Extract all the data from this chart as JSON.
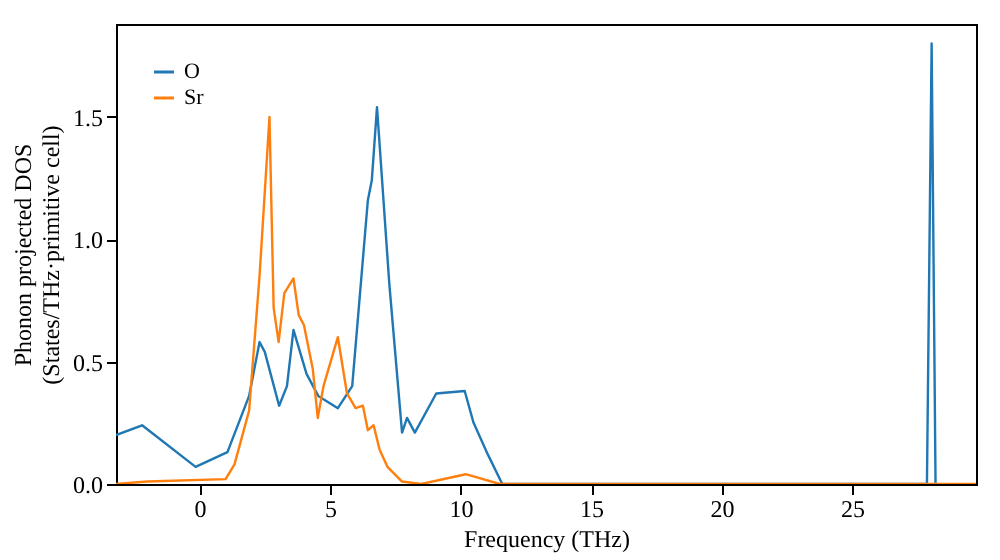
{
  "chart_data": {
    "type": "line",
    "xlabel": "Frequency (THz)",
    "ylabel": "Phonon projected DOS\n(States/THz·primitive cell)",
    "xlim": [
      -3.2,
      29.75
    ],
    "ylim": [
      0,
      1.88
    ],
    "xticks": [
      0,
      5,
      10,
      15,
      20,
      25
    ],
    "yticks": [
      {
        "value": 0,
        "label": "0.0"
      },
      {
        "value": 0.5,
        "label": "0.5"
      },
      {
        "value": 1.0,
        "label": "1.0"
      },
      {
        "value": 1.5,
        "label": "1.5"
      }
    ],
    "grid": false,
    "legend": "top left",
    "line_style": "solid",
    "marker": "none",
    "series": [
      {
        "name": "O",
        "color": "#1f77b4",
        "x": [
          -3.2,
          -2.2,
          -0.15,
          1.07,
          1.9,
          2.3,
          2.5,
          3.05,
          3.35,
          3.6,
          4.1,
          4.55,
          5.3,
          5.85,
          6.45,
          6.6,
          6.8,
          7.27,
          7.76,
          7.95,
          8.25,
          9.07,
          10.16,
          10.5,
          11.05,
          11.6,
          27.87,
          28.05,
          28.2
        ],
        "values": [
          0.2,
          0.24,
          0.07,
          0.13,
          0.36,
          0.58,
          0.54,
          0.32,
          0.4,
          0.63,
          0.45,
          0.36,
          0.31,
          0.4,
          1.16,
          1.24,
          1.54,
          0.82,
          0.21,
          0.27,
          0.21,
          0.37,
          0.38,
          0.25,
          0.12,
          0.0,
          0.0,
          1.8,
          0.0
        ]
      },
      {
        "name": "Sr",
        "color": "#ff7f0e",
        "x": [
          -3.2,
          -2.0,
          1.0,
          1.34,
          1.9,
          2.3,
          2.68,
          2.84,
          3.03,
          3.25,
          3.6,
          3.8,
          4.0,
          4.34,
          4.53,
          4.75,
          5.3,
          5.65,
          5.98,
          6.26,
          6.45,
          6.67,
          6.9,
          7.2,
          7.76,
          8.5,
          10.2,
          11.5,
          29.75
        ],
        "values": [
          0.0,
          0.01,
          0.02,
          0.08,
          0.3,
          0.85,
          1.5,
          0.72,
          0.58,
          0.78,
          0.84,
          0.69,
          0.65,
          0.47,
          0.27,
          0.4,
          0.6,
          0.37,
          0.31,
          0.32,
          0.22,
          0.24,
          0.14,
          0.07,
          0.01,
          0.0,
          0.04,
          0.0,
          0.0
        ]
      }
    ]
  }
}
